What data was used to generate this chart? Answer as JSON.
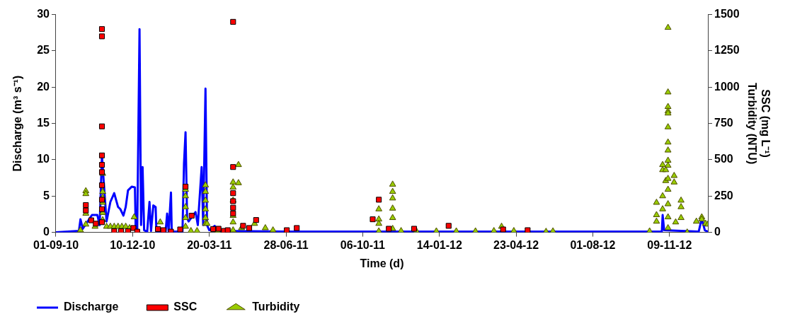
{
  "chart_data": {
    "type": "line",
    "xlabel": "Time (d)",
    "ylabel": "Discharge (m³ s⁻¹)",
    "y2label": "SSC (mg L⁻¹)\nTurbidity (NTU)",
    "xlim": [
      "2010-09-01",
      "2012-12-29"
    ],
    "xticks": [
      {
        "value": "2010-09-01",
        "label": "01-09-10"
      },
      {
        "value": "2010-12-10",
        "label": "10-12-10"
      },
      {
        "value": "2011-03-20",
        "label": "20-03-11"
      },
      {
        "value": "2011-06-28",
        "label": "28-06-11"
      },
      {
        "value": "2011-10-06",
        "label": "06-10-11"
      },
      {
        "value": "2012-01-14",
        "label": "14-01-12"
      },
      {
        "value": "2012-04-23",
        "label": "23-04-12"
      },
      {
        "value": "2012-08-01",
        "label": "01-08-12"
      },
      {
        "value": "2012-11-09",
        "label": "09-11-12"
      }
    ],
    "ylim": [
      0,
      30
    ],
    "yticks": [
      0,
      5,
      10,
      15,
      20,
      25,
      30
    ],
    "y2lim": [
      0,
      1500
    ],
    "y2ticks": [
      0,
      250,
      500,
      750,
      1000,
      1250,
      1500
    ],
    "grid": false,
    "legend": "bottom",
    "series": [
      {
        "name": "Discharge",
        "color": "#0000ff",
        "marker": "none",
        "line_style": "solid",
        "x": [
          "2010-09-01",
          "2010-10-01",
          "2010-10-03",
          "2010-10-06",
          "2010-10-18",
          "2010-10-25",
          "2010-10-28",
          "2010-10-31",
          "2010-11-06",
          "2010-11-11",
          "2010-11-16",
          "2010-11-21",
          "2010-11-24",
          "2010-11-28",
          "2010-12-01",
          "2010-12-04",
          "2010-12-09",
          "2010-12-13",
          "2010-12-14",
          "2010-12-16",
          "2010-12-19",
          "2010-12-21",
          "2010-12-23",
          "2010-12-25",
          "2010-12-29",
          "2011-01-01",
          "2011-01-03",
          "2011-01-06",
          "2011-01-09",
          "2011-01-10",
          "2011-01-22",
          "2011-01-24",
          "2011-01-26",
          "2011-01-29",
          "2011-01-30",
          "2011-02-13",
          "2011-02-15",
          "2011-02-17",
          "2011-02-19",
          "2011-02-21",
          "2011-03-02",
          "2011-03-05",
          "2011-03-10",
          "2011-03-12",
          "2011-03-15",
          "2011-03-17",
          "2011-03-20",
          "2011-03-27",
          "2011-04-01",
          "2011-07-01",
          "2012-10-30",
          "2012-10-31",
          "2012-11-02",
          "2012-12-17",
          "2012-12-21",
          "2012-12-25",
          "2012-12-29"
        ],
        "values": [
          0,
          0.2,
          1.8,
          0.5,
          2.4,
          2.4,
          1.0,
          10.5,
          1.5,
          4.2,
          5.4,
          3.5,
          3.2,
          2.3,
          3.5,
          5.8,
          6.3,
          6.2,
          0.5,
          0.2,
          28,
          1.0,
          9.0,
          0.3,
          0.1,
          4.2,
          0.2,
          3.7,
          3.5,
          0.1,
          0.1,
          2.6,
          0.1,
          5.5,
          0.1,
          0.1,
          9.5,
          13.8,
          2.0,
          1.5,
          2.8,
          1.0,
          9.0,
          1.0,
          19.8,
          1.0,
          0.3,
          0.9,
          0.2,
          0.1,
          0.1,
          2.4,
          0.3,
          0.1,
          1.9,
          0.3,
          0.1
        ]
      },
      {
        "name": "SSC",
        "type": "scatter",
        "axis": "y2",
        "color": "#ff0000",
        "marker": "square",
        "x": [
          "2010-10-10",
          "2010-10-10",
          "2010-10-17",
          "2010-10-23",
          "2010-10-31",
          "2010-10-31",
          "2010-10-31",
          "2010-10-31",
          "2010-10-31",
          "2010-10-31",
          "2010-10-31",
          "2010-10-31",
          "2010-10-31",
          "2010-10-31",
          "2010-11-16",
          "2010-11-25",
          "2010-12-04",
          "2010-12-11",
          "2010-12-16",
          "2011-01-12",
          "2011-01-19",
          "2011-01-29",
          "2011-02-10",
          "2011-02-17",
          "2011-02-25",
          "2011-03-25",
          "2011-04-01",
          "2011-04-08",
          "2011-04-13",
          "2011-04-20",
          "2011-04-20",
          "2011-04-20",
          "2011-04-20",
          "2011-04-20",
          "2011-04-20",
          "2011-05-03",
          "2011-05-11",
          "2011-05-20",
          "2011-06-29",
          "2011-07-12",
          "2011-10-19",
          "2011-10-27",
          "2011-11-09",
          "2011-12-12",
          "2012-01-26",
          "2012-04-06",
          "2012-05-08"
        ],
        "values": [
          188,
          151,
          83,
          60,
          1400,
          1350,
          730,
          530,
          465,
          415,
          325,
          225,
          160,
          70,
          8,
          8,
          8,
          30,
          5,
          23,
          15,
          5,
          20,
          315,
          115,
          23,
          25,
          10,
          15,
          1450,
          450,
          270,
          215,
          170,
          130,
          45,
          30,
          85,
          15,
          30,
          90,
          225,
          25,
          25,
          45,
          20,
          15
        ]
      },
      {
        "name": "Turbidity",
        "type": "scatter",
        "axis": "y2",
        "color": "#99cc00",
        "marker": "triangle",
        "x": [
          "2010-10-03",
          "2010-10-10",
          "2010-10-10",
          "2010-10-10",
          "2010-10-10",
          "2010-10-22",
          "2010-11-01",
          "2010-11-01",
          "2010-11-01",
          "2010-11-01",
          "2010-11-01",
          "2010-11-01",
          "2010-11-06",
          "2010-11-11",
          "2010-11-16",
          "2010-11-21",
          "2010-11-26",
          "2010-12-01",
          "2010-12-06",
          "2010-12-12",
          "2011-01-15",
          "2011-02-17",
          "2011-02-17",
          "2011-02-17",
          "2011-02-17",
          "2011-02-17",
          "2011-02-24",
          "2011-03-04",
          "2011-03-15",
          "2011-03-15",
          "2011-03-15",
          "2011-03-15",
          "2011-03-15",
          "2011-03-15",
          "2011-03-17",
          "2011-03-31",
          "2011-04-20",
          "2011-04-20",
          "2011-04-20",
          "2011-04-20",
          "2011-04-20",
          "2011-04-20",
          "2011-04-27",
          "2011-04-27",
          "2011-05-01",
          "2011-05-18",
          "2011-06-01",
          "2011-06-11",
          "2011-06-29",
          "2011-10-27",
          "2011-10-27",
          "2011-10-27",
          "2011-10-27",
          "2011-11-14",
          "2011-11-14",
          "2011-11-14",
          "2011-11-14",
          "2011-11-14",
          "2011-11-14",
          "2011-11-25",
          "2011-12-15",
          "2012-01-10",
          "2012-02-05",
          "2012-03-01",
          "2012-03-25",
          "2012-04-04",
          "2012-04-20",
          "2012-05-08",
          "2012-06-01",
          "2012-06-10",
          "2012-10-14",
          "2012-10-23",
          "2012-10-23",
          "2012-10-23",
          "2012-10-31",
          "2012-10-31",
          "2012-10-31",
          "2012-10-31",
          "2012-11-04",
          "2012-11-04",
          "2012-11-07",
          "2012-11-07",
          "2012-11-07",
          "2012-11-07",
          "2012-11-07",
          "2012-11-07",
          "2012-11-07",
          "2012-11-07",
          "2012-11-07",
          "2012-11-07",
          "2012-11-07",
          "2012-11-07",
          "2012-11-07",
          "2012-11-07",
          "2012-11-07",
          "2012-11-15",
          "2012-11-15",
          "2012-11-17",
          "2012-11-24",
          "2012-11-24",
          "2012-11-24",
          "2012-12-02",
          "2012-12-14",
          "2012-12-21",
          "2012-12-21",
          "2012-12-26",
          "2012-12-29"
        ],
        "values": [
          15,
          285,
          265,
          130,
          55,
          40,
          405,
          280,
          240,
          205,
          135,
          85,
          40,
          40,
          40,
          40,
          40,
          40,
          30,
          105,
          70,
          295,
          250,
          175,
          100,
          40,
          10,
          10,
          325,
          280,
          220,
          160,
          100,
          60,
          60,
          8,
          345,
          310,
          220,
          115,
          70,
          15,
          465,
          340,
          30,
          60,
          30,
          15,
          5,
          160,
          90,
          60,
          8,
          330,
          280,
          235,
          165,
          100,
          25,
          10,
          8,
          8,
          8,
          8,
          10,
          40,
          10,
          8,
          5,
          8,
          8,
          205,
          120,
          75,
          465,
          430,
          250,
          160,
          430,
          355,
          1410,
          965,
          865,
          835,
          820,
          725,
          620,
          565,
          495,
          460,
          370,
          295,
          195,
          105,
          30,
          390,
          345,
          70,
          220,
          175,
          100,
          0,
          75,
          105,
          90,
          60,
          55
        ]
      }
    ]
  }
}
